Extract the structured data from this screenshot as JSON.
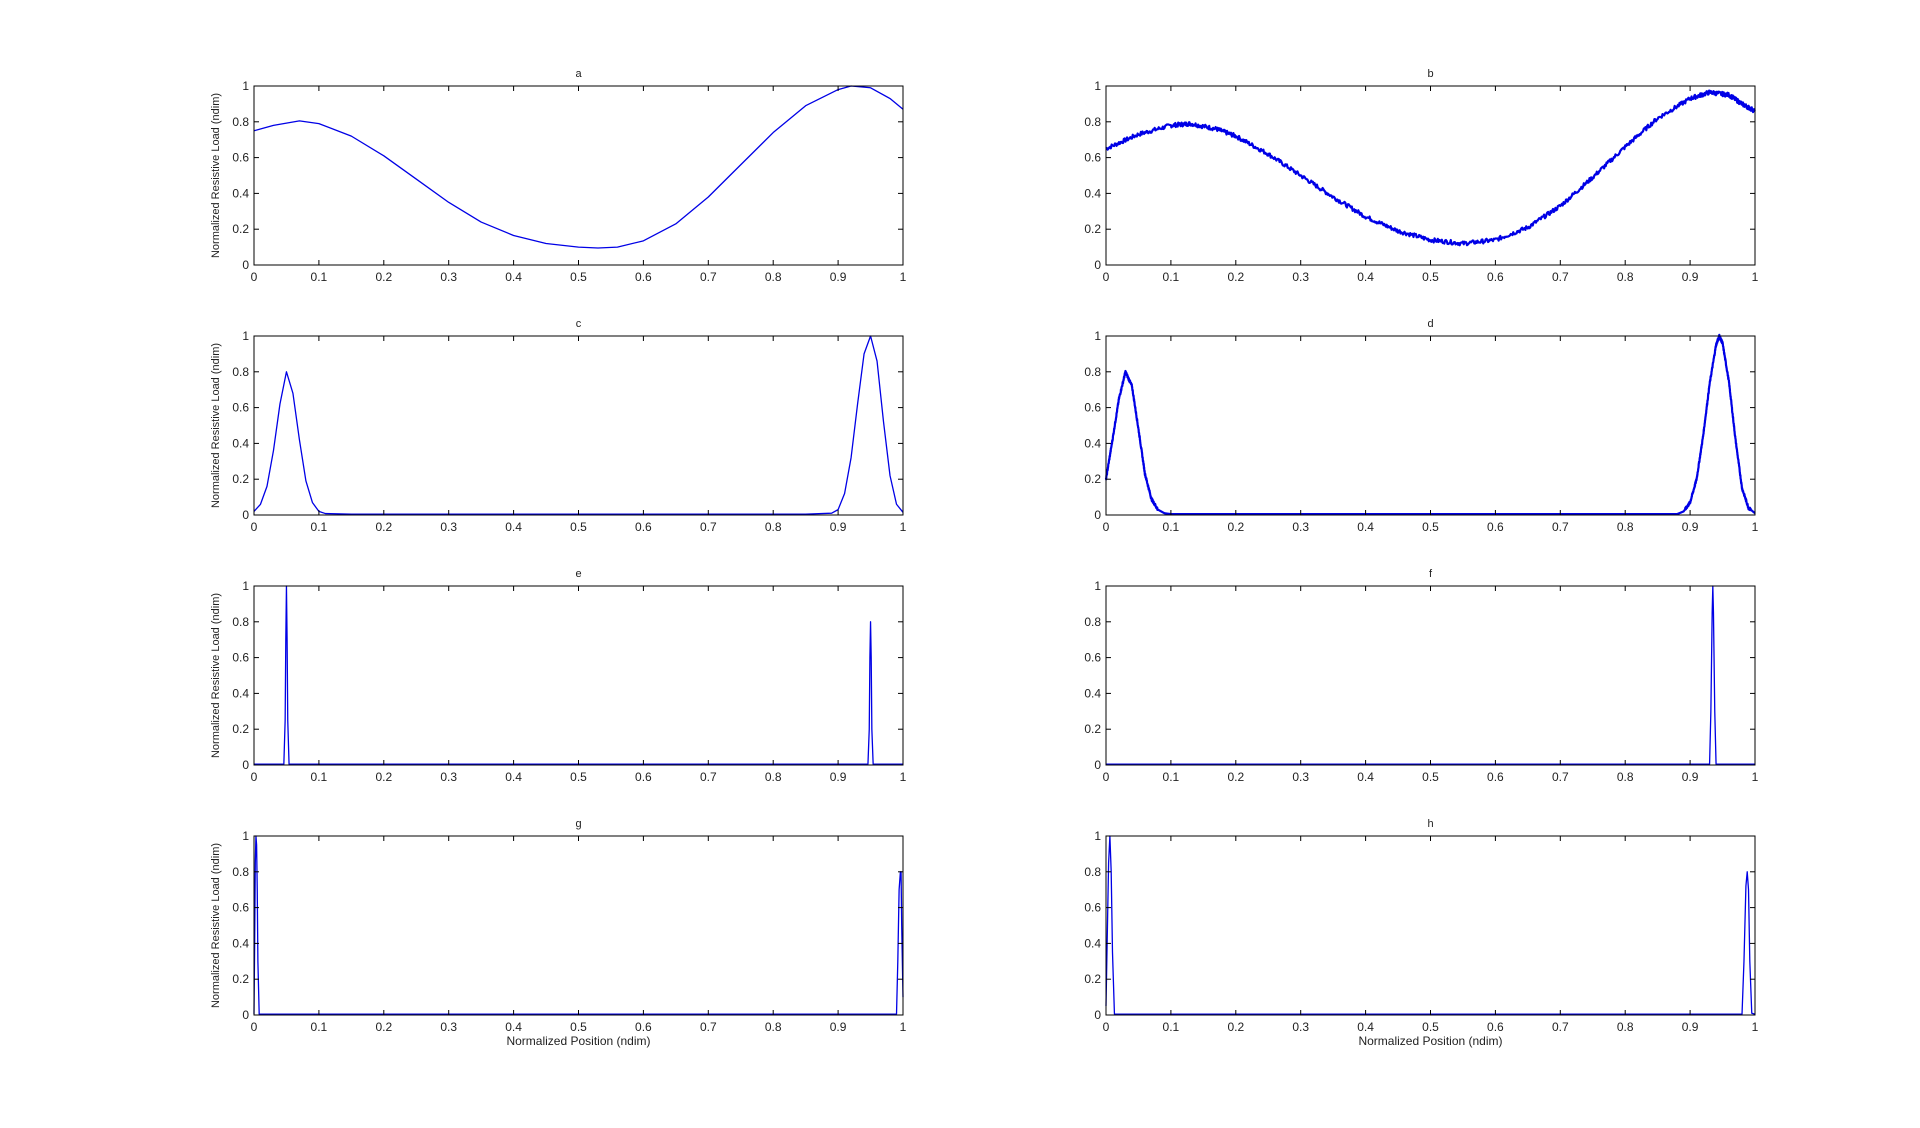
{
  "figure": {
    "background": "#ffffff",
    "line_color": "#0000e6",
    "axis_color": "#000000"
  },
  "chart_data": [
    {
      "id": "a",
      "type": "line",
      "title": "a",
      "ylabel": "Normalized Resistive Load (ndim)",
      "xlabel": "",
      "xlim": [
        0,
        1
      ],
      "ylim": [
        0,
        1
      ],
      "xticks": [
        0,
        0.1,
        0.2,
        0.3,
        0.4,
        0.5,
        0.6,
        0.7,
        0.8,
        0.9,
        1
      ],
      "xtick_labels": [
        "0",
        "0.1",
        "0.2",
        "0.3",
        "0.4",
        "0.5",
        "0.6",
        "0.7",
        "0.8",
        "0.9",
        "1"
      ],
      "yticks": [
        0,
        0.2,
        0.4,
        0.6,
        0.8,
        1
      ],
      "ytick_labels": [
        "0",
        "0.2",
        "0.4",
        "0.6",
        "0.8",
        "1"
      ],
      "noise": 0,
      "series": [
        {
          "values": [
            [
              0,
              0.75
            ],
            [
              0.03,
              0.78
            ],
            [
              0.07,
              0.805
            ],
            [
              0.1,
              0.79
            ],
            [
              0.15,
              0.72
            ],
            [
              0.2,
              0.61
            ],
            [
              0.25,
              0.48
            ],
            [
              0.3,
              0.35
            ],
            [
              0.35,
              0.24
            ],
            [
              0.4,
              0.165
            ],
            [
              0.45,
              0.12
            ],
            [
              0.5,
              0.1
            ],
            [
              0.53,
              0.095
            ],
            [
              0.56,
              0.1
            ],
            [
              0.6,
              0.135
            ],
            [
              0.65,
              0.23
            ],
            [
              0.7,
              0.38
            ],
            [
              0.75,
              0.56
            ],
            [
              0.8,
              0.74
            ],
            [
              0.85,
              0.89
            ],
            [
              0.9,
              0.98
            ],
            [
              0.92,
              1.0
            ],
            [
              0.95,
              0.99
            ],
            [
              0.98,
              0.93
            ],
            [
              1,
              0.87
            ]
          ]
        }
      ]
    },
    {
      "id": "b",
      "type": "line",
      "title": "b",
      "ylabel": "",
      "xlabel": "",
      "xlim": [
        0,
        1
      ],
      "ylim": [
        0,
        1
      ],
      "xticks": [
        0,
        0.1,
        0.2,
        0.3,
        0.4,
        0.5,
        0.6,
        0.7,
        0.8,
        0.9,
        1
      ],
      "xtick_labels": [
        "0",
        "0.1",
        "0.2",
        "0.3",
        "0.4",
        "0.5",
        "0.6",
        "0.7",
        "0.8",
        "0.9",
        "1"
      ],
      "yticks": [
        0,
        0.2,
        0.4,
        0.6,
        0.8,
        1
      ],
      "ytick_labels": [
        "0",
        "0.2",
        "0.4",
        "0.6",
        "0.8",
        "1"
      ],
      "noise": 0.012,
      "series": [
        {
          "values": [
            [
              0,
              0.65
            ],
            [
              0.05,
              0.73
            ],
            [
              0.1,
              0.78
            ],
            [
              0.13,
              0.79
            ],
            [
              0.17,
              0.76
            ],
            [
              0.2,
              0.72
            ],
            [
              0.25,
              0.62
            ],
            [
              0.3,
              0.5
            ],
            [
              0.35,
              0.38
            ],
            [
              0.4,
              0.27
            ],
            [
              0.45,
              0.19
            ],
            [
              0.5,
              0.14
            ],
            [
              0.55,
              0.12
            ],
            [
              0.6,
              0.14
            ],
            [
              0.65,
              0.21
            ],
            [
              0.7,
              0.33
            ],
            [
              0.75,
              0.49
            ],
            [
              0.8,
              0.66
            ],
            [
              0.85,
              0.82
            ],
            [
              0.9,
              0.93
            ],
            [
              0.93,
              0.965
            ],
            [
              0.96,
              0.95
            ],
            [
              0.98,
              0.9
            ],
            [
              1,
              0.86
            ]
          ]
        }
      ]
    },
    {
      "id": "c",
      "type": "line",
      "title": "c",
      "ylabel": "Normalized Resistive Load (ndim)",
      "xlabel": "",
      "xlim": [
        0,
        1
      ],
      "ylim": [
        0,
        1
      ],
      "xticks": [
        0,
        0.1,
        0.2,
        0.3,
        0.4,
        0.5,
        0.6,
        0.7,
        0.8,
        0.9,
        1
      ],
      "xtick_labels": [
        "0",
        "0.1",
        "0.2",
        "0.3",
        "0.4",
        "0.5",
        "0.6",
        "0.7",
        "0.8",
        "0.9",
        "1"
      ],
      "yticks": [
        0,
        0.2,
        0.4,
        0.6,
        0.8,
        1
      ],
      "ytick_labels": [
        "0",
        "0.2",
        "0.4",
        "0.6",
        "0.8",
        "1"
      ],
      "noise": 0,
      "series": [
        {
          "values": [
            [
              0,
              0.02
            ],
            [
              0.01,
              0.06
            ],
            [
              0.02,
              0.16
            ],
            [
              0.03,
              0.36
            ],
            [
              0.04,
              0.62
            ],
            [
              0.05,
              0.8
            ],
            [
              0.06,
              0.68
            ],
            [
              0.07,
              0.42
            ],
            [
              0.08,
              0.19
            ],
            [
              0.09,
              0.07
            ],
            [
              0.1,
              0.02
            ],
            [
              0.11,
              0.008
            ],
            [
              0.15,
              0.005
            ],
            [
              0.5,
              0.005
            ],
            [
              0.85,
              0.005
            ],
            [
              0.89,
              0.01
            ],
            [
              0.9,
              0.03
            ],
            [
              0.91,
              0.12
            ],
            [
              0.92,
              0.32
            ],
            [
              0.93,
              0.62
            ],
            [
              0.94,
              0.9
            ],
            [
              0.95,
              1.0
            ],
            [
              0.96,
              0.86
            ],
            [
              0.97,
              0.52
            ],
            [
              0.98,
              0.22
            ],
            [
              0.99,
              0.06
            ],
            [
              1,
              0.015
            ]
          ]
        }
      ]
    },
    {
      "id": "d",
      "type": "line",
      "title": "d",
      "ylabel": "",
      "xlabel": "",
      "xlim": [
        0,
        1
      ],
      "ylim": [
        0,
        1
      ],
      "xticks": [
        0,
        0.1,
        0.2,
        0.3,
        0.4,
        0.5,
        0.6,
        0.7,
        0.8,
        0.9,
        1
      ],
      "xtick_labels": [
        "0",
        "0.1",
        "0.2",
        "0.3",
        "0.4",
        "0.5",
        "0.6",
        "0.7",
        "0.8",
        "0.9",
        "1"
      ],
      "yticks": [
        0,
        0.2,
        0.4,
        0.6,
        0.8,
        1
      ],
      "ytick_labels": [
        "0",
        "0.2",
        "0.4",
        "0.6",
        "0.8",
        "1"
      ],
      "noise": 0.008,
      "series": [
        {
          "values": [
            [
              0,
              0.2
            ],
            [
              0.01,
              0.42
            ],
            [
              0.02,
              0.65
            ],
            [
              0.03,
              0.8
            ],
            [
              0.04,
              0.72
            ],
            [
              0.05,
              0.48
            ],
            [
              0.06,
              0.23
            ],
            [
              0.07,
              0.09
            ],
            [
              0.08,
              0.03
            ],
            [
              0.09,
              0.01
            ],
            [
              0.1,
              0.005
            ],
            [
              0.5,
              0.005
            ],
            [
              0.88,
              0.005
            ],
            [
              0.89,
              0.02
            ],
            [
              0.9,
              0.07
            ],
            [
              0.91,
              0.2
            ],
            [
              0.92,
              0.44
            ],
            [
              0.93,
              0.73
            ],
            [
              0.94,
              0.95
            ],
            [
              0.945,
              1.0
            ],
            [
              0.95,
              0.96
            ],
            [
              0.96,
              0.74
            ],
            [
              0.97,
              0.42
            ],
            [
              0.98,
              0.15
            ],
            [
              0.99,
              0.04
            ],
            [
              1,
              0.01
            ]
          ]
        }
      ]
    },
    {
      "id": "e",
      "type": "line",
      "title": "e",
      "ylabel": "Normalized Resistive Load (ndim)",
      "xlabel": "",
      "xlim": [
        0,
        1
      ],
      "ylim": [
        0,
        1
      ],
      "xticks": [
        0,
        0.1,
        0.2,
        0.3,
        0.4,
        0.5,
        0.6,
        0.7,
        0.8,
        0.9,
        1
      ],
      "xtick_labels": [
        "0",
        "0.1",
        "0.2",
        "0.3",
        "0.4",
        "0.5",
        "0.6",
        "0.7",
        "0.8",
        "0.9",
        "1"
      ],
      "yticks": [
        0,
        0.2,
        0.4,
        0.6,
        0.8,
        1
      ],
      "ytick_labels": [
        "0",
        "0.2",
        "0.4",
        "0.6",
        "0.8",
        "1"
      ],
      "noise": 0,
      "series": [
        {
          "values": [
            [
              0,
              0.005
            ],
            [
              0.046,
              0.005
            ],
            [
              0.048,
              0.25
            ],
            [
              0.049,
              0.7
            ],
            [
              0.05,
              1.0
            ],
            [
              0.051,
              0.7
            ],
            [
              0.052,
              0.25
            ],
            [
              0.054,
              0.005
            ],
            [
              0.946,
              0.005
            ],
            [
              0.948,
              0.2
            ],
            [
              0.949,
              0.6
            ],
            [
              0.95,
              0.8
            ],
            [
              0.951,
              0.6
            ],
            [
              0.952,
              0.2
            ],
            [
              0.954,
              0.005
            ],
            [
              1,
              0.005
            ]
          ]
        }
      ]
    },
    {
      "id": "f",
      "type": "line",
      "title": "f",
      "ylabel": "",
      "xlabel": "",
      "xlim": [
        0,
        1
      ],
      "ylim": [
        0,
        1
      ],
      "xticks": [
        0,
        0.1,
        0.2,
        0.3,
        0.4,
        0.5,
        0.6,
        0.7,
        0.8,
        0.9,
        1
      ],
      "xtick_labels": [
        "0",
        "0.1",
        "0.2",
        "0.3",
        "0.4",
        "0.5",
        "0.6",
        "0.7",
        "0.8",
        "0.9",
        "1"
      ],
      "yticks": [
        0,
        0.2,
        0.4,
        0.6,
        0.8,
        1
      ],
      "ytick_labels": [
        "0",
        "0.2",
        "0.4",
        "0.6",
        "0.8",
        "1"
      ],
      "noise": 0,
      "series": [
        {
          "values": [
            [
              0,
              0.005
            ],
            [
              0.93,
              0.005
            ],
            [
              0.932,
              0.3
            ],
            [
              0.934,
              0.85
            ],
            [
              0.935,
              1.0
            ],
            [
              0.936,
              0.85
            ],
            [
              0.938,
              0.3
            ],
            [
              0.94,
              0.005
            ],
            [
              1,
              0.005
            ]
          ]
        }
      ]
    },
    {
      "id": "g",
      "type": "line",
      "title": "g",
      "ylabel": "Normalized Resistive Load (ndim)",
      "xlabel": "Normalized Position (ndim)",
      "xlim": [
        0,
        1
      ],
      "ylim": [
        0,
        1
      ],
      "xticks": [
        0,
        0.1,
        0.2,
        0.3,
        0.4,
        0.5,
        0.6,
        0.7,
        0.8,
        0.9,
        1
      ],
      "xtick_labels": [
        "0",
        "0.1",
        "0.2",
        "0.3",
        "0.4",
        "0.5",
        "0.6",
        "0.7",
        "0.8",
        "0.9",
        "1"
      ],
      "yticks": [
        0,
        0.2,
        0.4,
        0.6,
        0.8,
        1
      ],
      "ytick_labels": [
        "0",
        "0.2",
        "0.4",
        "0.6",
        "0.8",
        "1"
      ],
      "noise": 0,
      "series": [
        {
          "values": [
            [
              0,
              0.005
            ],
            [
              0.001,
              0.4
            ],
            [
              0.002,
              0.85
            ],
            [
              0.003,
              1.0
            ],
            [
              0.004,
              0.95
            ],
            [
              0.005,
              0.7
            ],
            [
              0.006,
              0.3
            ],
            [
              0.008,
              0.005
            ],
            [
              0.99,
              0.005
            ],
            [
              0.992,
              0.3
            ],
            [
              0.994,
              0.7
            ],
            [
              0.996,
              0.8
            ],
            [
              0.997,
              0.8
            ],
            [
              0.998,
              0.5
            ],
            [
              1,
              0.1
            ]
          ]
        }
      ]
    },
    {
      "id": "h",
      "type": "line",
      "title": "h",
      "ylabel": "",
      "xlabel": "Normalized Position (ndim)",
      "xlim": [
        0,
        1
      ],
      "ylim": [
        0,
        1
      ],
      "xticks": [
        0,
        0.1,
        0.2,
        0.3,
        0.4,
        0.5,
        0.6,
        0.7,
        0.8,
        0.9,
        1
      ],
      "xtick_labels": [
        "0",
        "0.1",
        "0.2",
        "0.3",
        "0.4",
        "0.5",
        "0.6",
        "0.7",
        "0.8",
        "0.9",
        "1"
      ],
      "yticks": [
        0,
        0.2,
        0.4,
        0.6,
        0.8,
        1
      ],
      "ytick_labels": [
        "0",
        "0.2",
        "0.4",
        "0.6",
        "0.8",
        "1"
      ],
      "noise": 0,
      "series": [
        {
          "values": [
            [
              0,
              0.05
            ],
            [
              0.002,
              0.45
            ],
            [
              0.004,
              0.85
            ],
            [
              0.006,
              1.0
            ],
            [
              0.008,
              0.8
            ],
            [
              0.01,
              0.35
            ],
            [
              0.013,
              0.005
            ],
            [
              0.98,
              0.005
            ],
            [
              0.983,
              0.3
            ],
            [
              0.986,
              0.72
            ],
            [
              0.988,
              0.8
            ],
            [
              0.99,
              0.7
            ],
            [
              0.992,
              0.3
            ],
            [
              0.995,
              0.01
            ],
            [
              1,
              0.005
            ]
          ]
        }
      ]
    }
  ]
}
